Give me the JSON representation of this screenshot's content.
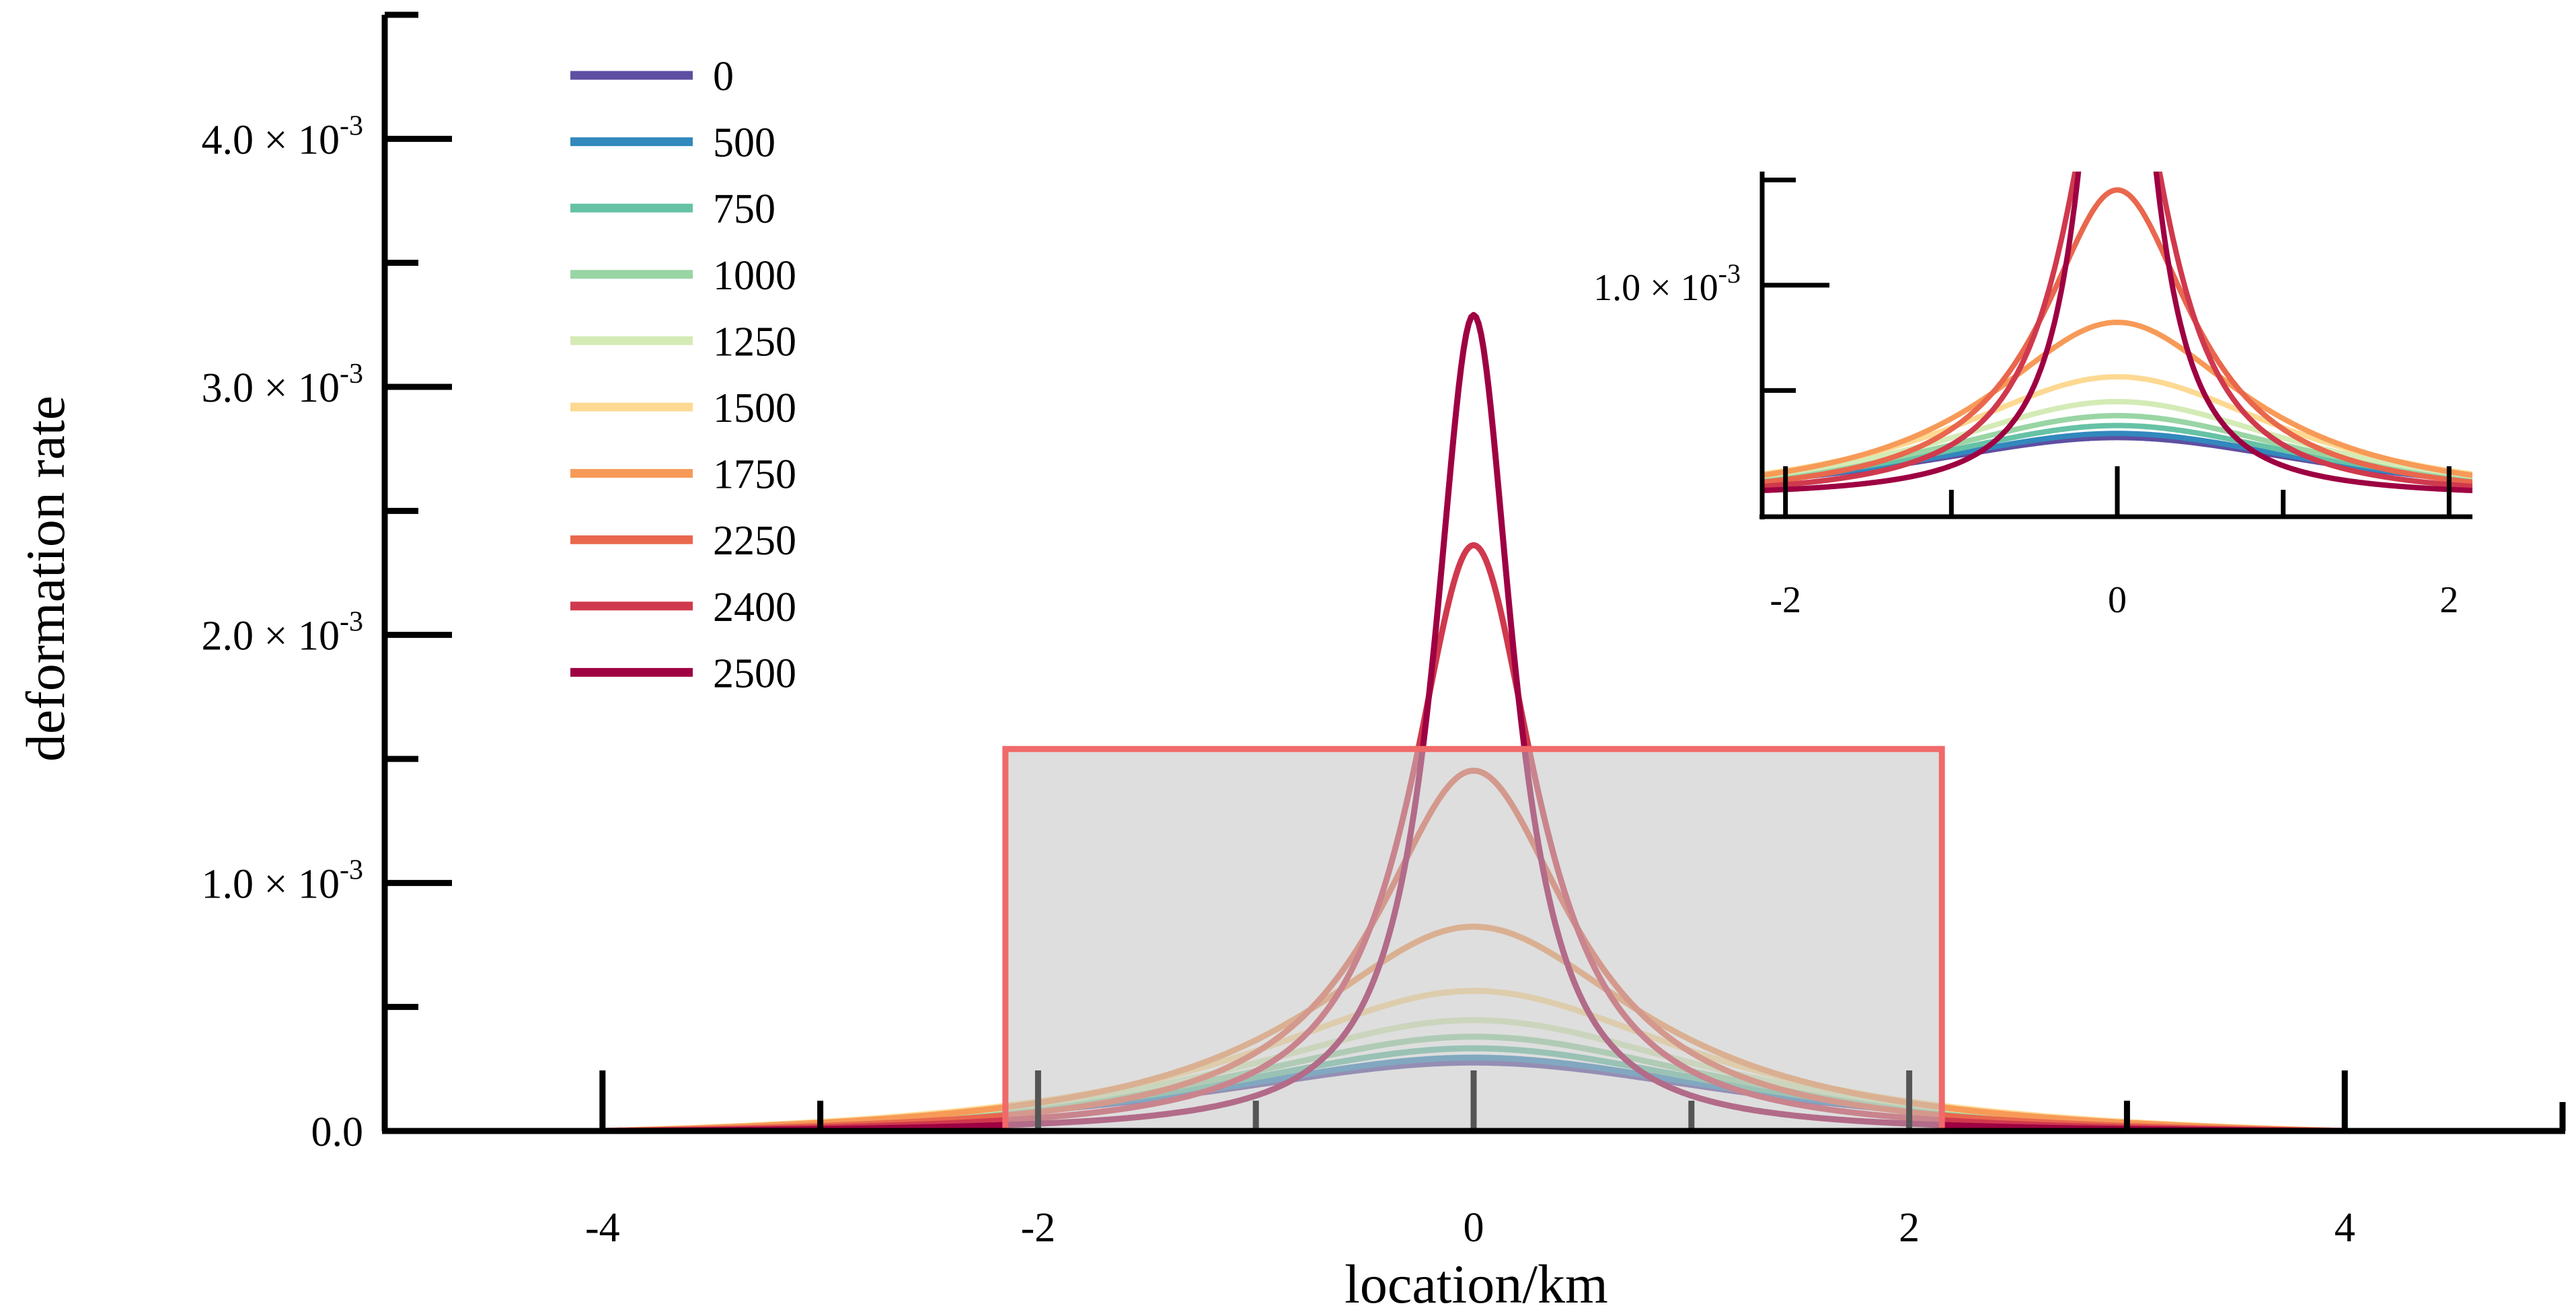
{
  "chart_data": {
    "type": "line",
    "xlabel": "location/km",
    "ylabel": "deformation rate",
    "xlim": [
      -5,
      5
    ],
    "ylim": [
      0,
      0.0045
    ],
    "x_ticks": [
      {
        "value": -4,
        "label": "-4"
      },
      {
        "value": -2,
        "label": "-2"
      },
      {
        "value": 0,
        "label": "0"
      },
      {
        "value": 2,
        "label": "2"
      },
      {
        "value": 4,
        "label": "4"
      }
    ],
    "y_ticks": [
      {
        "value": 0,
        "label": "0.0",
        "sup": ""
      },
      {
        "value": 0.001,
        "label": "1.0 × 10",
        "sup": "-3"
      },
      {
        "value": 0.002,
        "label": "2.0 × 10",
        "sup": "-3"
      },
      {
        "value": 0.003,
        "label": "3.0 × 10",
        "sup": "-3"
      },
      {
        "value": 0.004,
        "label": "4.0 × 10",
        "sup": "-3"
      }
    ],
    "legend_position": "top-left",
    "data_range_x": [
      -4,
      4
    ],
    "highlight_region": {
      "x": [
        -2.15,
        2.15
      ],
      "y": [
        0,
        0.00154
      ]
    },
    "series": [
      {
        "name": "0",
        "color": "#5e4fa2",
        "peak": 0.00032,
        "width_km": 1.6
      },
      {
        "name": "500",
        "color": "#3288bd",
        "peak": 0.00034,
        "width_km": 1.55
      },
      {
        "name": "750",
        "color": "#66c2a5",
        "peak": 0.00038,
        "width_km": 1.5
      },
      {
        "name": "1000",
        "color": "#99d5a4",
        "peak": 0.00043,
        "width_km": 1.45
      },
      {
        "name": "1250",
        "color": "#d4ebb6",
        "peak": 0.0005,
        "width_km": 1.38
      },
      {
        "name": "1500",
        "color": "#fdd992",
        "peak": 0.00062,
        "width_km": 1.25
      },
      {
        "name": "1750",
        "color": "#f79a58",
        "peak": 0.00087,
        "width_km": 0.95
      },
      {
        "name": "2250",
        "color": "#e9674d",
        "peak": 0.00148,
        "width_km": 0.55
      },
      {
        "name": "2400",
        "color": "#d0394d",
        "peak": 0.00238,
        "width_km": 0.35
      },
      {
        "name": "2500",
        "color": "#9e0142",
        "peak": 0.0033,
        "width_km": 0.22
      }
    ],
    "inset": {
      "xlim": [
        -2.1,
        2.1
      ],
      "ylim": [
        -0.0001,
        0.00154
      ],
      "x_ticks": [
        {
          "value": -2,
          "label": "-2"
        },
        {
          "value": 0,
          "label": "0"
        },
        {
          "value": 2,
          "label": "2"
        }
      ],
      "y_ticks": [
        {
          "value": 0.001,
          "label": "1.0 × 10",
          "sup": "-3"
        }
      ]
    }
  }
}
